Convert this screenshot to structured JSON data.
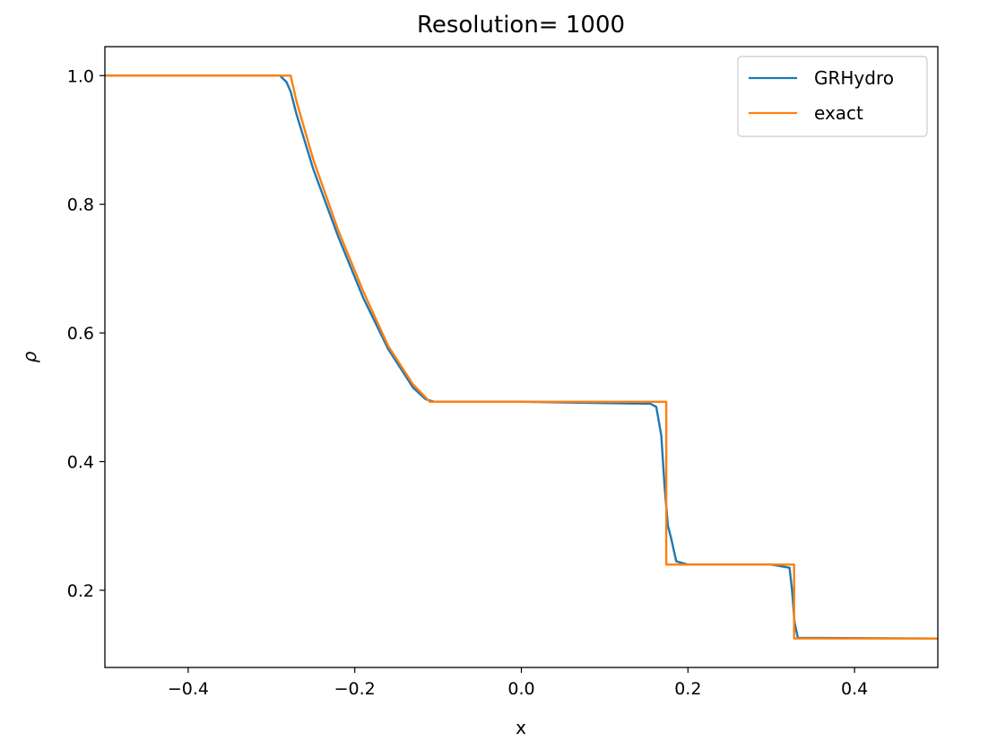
{
  "chart_data": {
    "type": "line",
    "title": "Resolution= 1000",
    "xlabel": "x",
    "ylabel": "ρ",
    "xlim": [
      -0.5,
      0.5
    ],
    "ylim": [
      0.08,
      1.045
    ],
    "xticks": [
      -0.4,
      -0.2,
      0.0,
      0.2,
      0.4
    ],
    "xtick_labels": [
      "−0.4",
      "−0.2",
      "0.0",
      "0.2",
      "0.4"
    ],
    "yticks": [
      0.2,
      0.4,
      0.6,
      0.8,
      1.0
    ],
    "ytick_labels": [
      "0.2",
      "0.4",
      "0.6",
      "0.8",
      "1.0"
    ],
    "grid": false,
    "legend_position": "top-right",
    "series": [
      {
        "name": "GRHydro",
        "color": "#1f77b4",
        "x": [
          -0.5,
          -0.29,
          -0.282,
          -0.277,
          -0.27,
          -0.25,
          -0.22,
          -0.19,
          -0.16,
          -0.13,
          -0.115,
          -0.105,
          0.0,
          0.155,
          0.162,
          0.168,
          0.172,
          0.176,
          0.18,
          0.186,
          0.2,
          0.3,
          0.322,
          0.325,
          0.328,
          0.332,
          0.5
        ],
        "y": [
          1.0,
          1.0,
          0.99,
          0.975,
          0.94,
          0.855,
          0.75,
          0.655,
          0.575,
          0.515,
          0.497,
          0.493,
          0.493,
          0.49,
          0.485,
          0.44,
          0.36,
          0.3,
          0.28,
          0.245,
          0.24,
          0.24,
          0.235,
          0.2,
          0.15,
          0.126,
          0.125
        ]
      },
      {
        "name": "exact",
        "color": "#ff7f0e",
        "x": [
          -0.5,
          -0.277,
          -0.27,
          -0.25,
          -0.22,
          -0.19,
          -0.16,
          -0.13,
          -0.11,
          0.174,
          0.174,
          0.175,
          0.3275,
          0.3275,
          0.5
        ],
        "y": [
          1.0,
          1.0,
          0.96,
          0.87,
          0.76,
          0.665,
          0.58,
          0.52,
          0.493,
          0.493,
          0.24,
          0.24,
          0.24,
          0.125,
          0.125
        ]
      }
    ]
  }
}
